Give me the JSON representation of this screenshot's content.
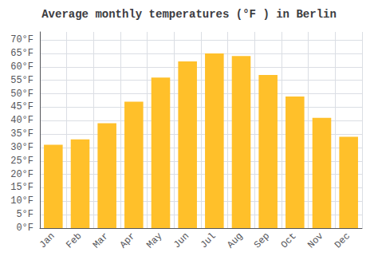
{
  "chart_data": {
    "type": "bar",
    "title": "Average monthly temperatures (°F ) in Berlin",
    "categories": [
      "Jan",
      "Feb",
      "Mar",
      "Apr",
      "May",
      "Jun",
      "Jul",
      "Aug",
      "Sep",
      "Oct",
      "Nov",
      "Dec"
    ],
    "values": [
      31,
      33,
      39,
      47,
      56,
      62,
      65,
      64,
      57,
      49,
      41,
      34
    ],
    "color": "#FFC02A",
    "ylim": [
      0,
      73
    ],
    "yticks": [
      {
        "value": 0,
        "label": "0°F"
      },
      {
        "value": 5,
        "label": "5°F"
      },
      {
        "value": 10,
        "label": "10°F"
      },
      {
        "value": 15,
        "label": "15°F"
      },
      {
        "value": 20,
        "label": "20°F"
      },
      {
        "value": 25,
        "label": "25°F"
      },
      {
        "value": 30,
        "label": "30°F"
      },
      {
        "value": 35,
        "label": "35°F"
      },
      {
        "value": 40,
        "label": "40°F"
      },
      {
        "value": 45,
        "label": "45°F"
      },
      {
        "value": 50,
        "label": "50°F"
      },
      {
        "value": 55,
        "label": "55°F"
      },
      {
        "value": 60,
        "label": "60°F"
      },
      {
        "value": 65,
        "label": "65°F"
      },
      {
        "value": 70,
        "label": "70°F"
      }
    ],
    "grid": true
  }
}
